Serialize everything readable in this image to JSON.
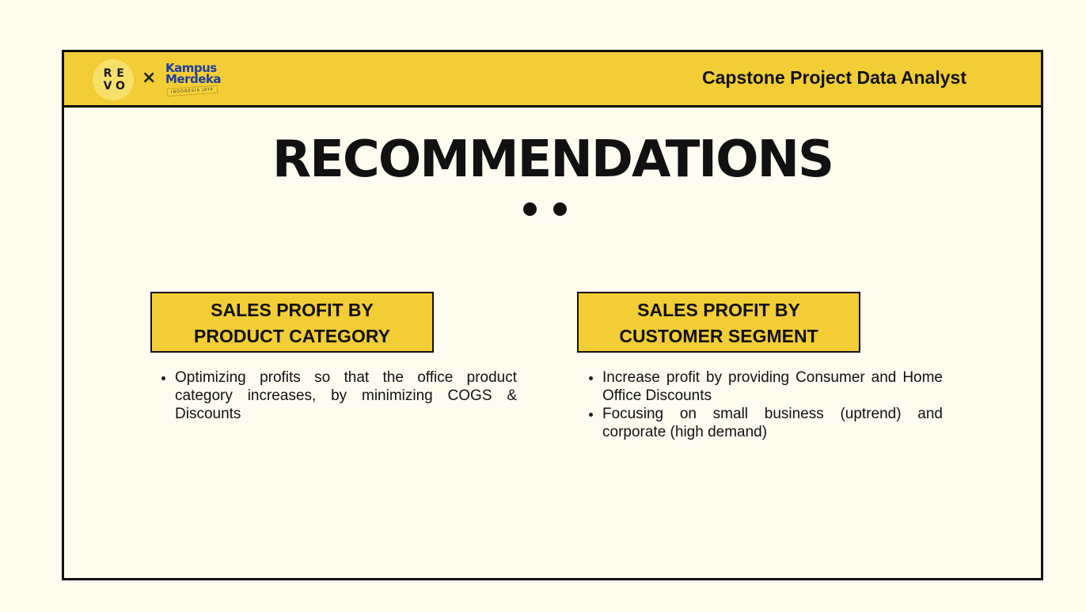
{
  "header": {
    "logo_revo_letters": [
      "R",
      "E",
      "V",
      "O"
    ],
    "separator": "×",
    "logo_kampus_line1": "Kampus",
    "logo_kampus_line2": "Merdeka",
    "logo_kampus_tag": "INDONESIA JAYA",
    "title": "Capstone Project Data Analyst",
    "background_color": "#f2cd35"
  },
  "main": {
    "title": "RECOMMENDATIONS",
    "sections": [
      {
        "heading_line1": "SALES PROFIT BY",
        "heading_line2": "PRODUCT CATEGORY",
        "points": [
          "Optimizing profits so that the office product category increases, by minimizing COGS & Discounts"
        ]
      },
      {
        "heading_line1": "SALES PROFIT BY",
        "heading_line2": "CUSTOMER SEGMENT",
        "points": [
          "Increase profit by providing Consumer and Home Office Discounts",
          "Focusing on small business (uptrend) and corporate (high demand)"
        ]
      }
    ]
  },
  "colors": {
    "accent": "#f2cd35",
    "page_background": "#fefcef",
    "text": "#111111",
    "kampus_blue": "#1d3f9e"
  }
}
